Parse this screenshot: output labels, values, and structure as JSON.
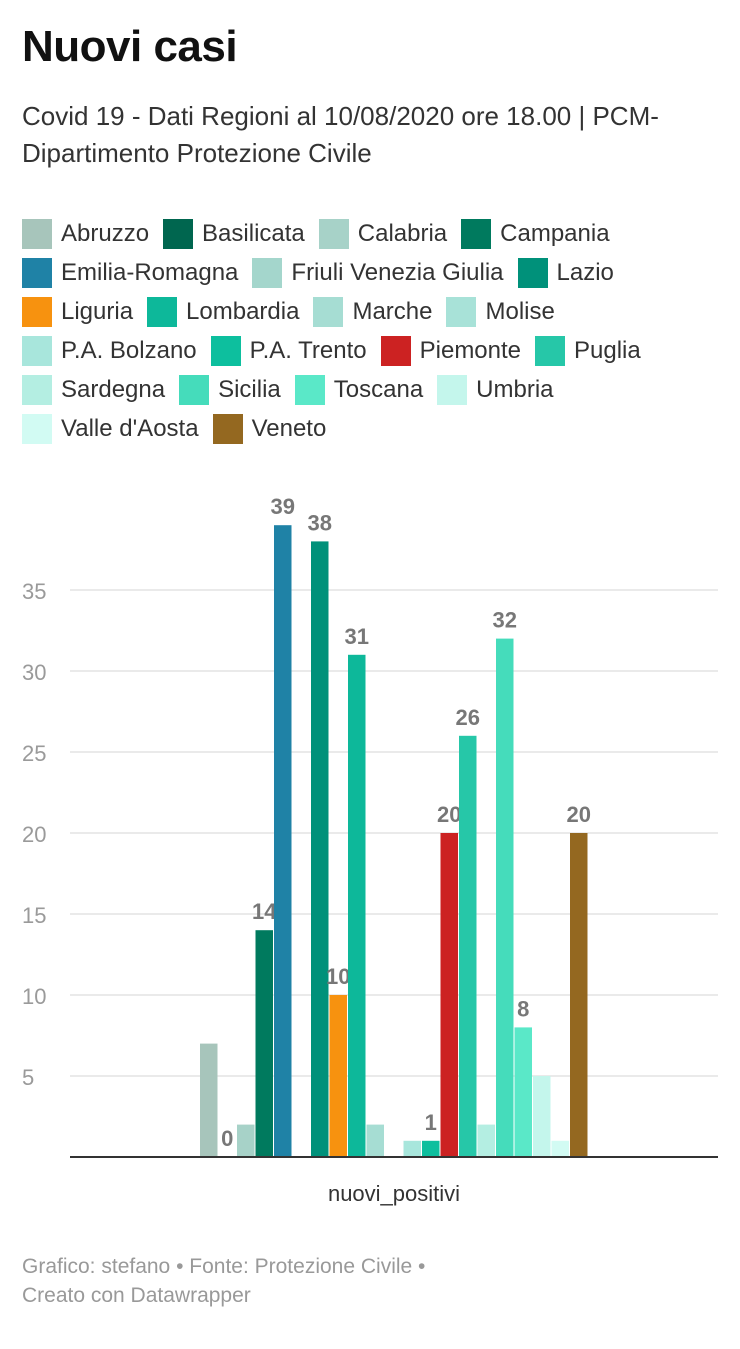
{
  "header": {
    "title": "Nuovi casi",
    "subtitle": "Covid 19 - Dati Regioni al 10/08/2020 ore 18.00 | PCM- Dipartimento Protezione Civile"
  },
  "footer": {
    "line1": "Grafico: stefano • Fonte: Protezione Civile •",
    "line2": "Creato con Datawrapper"
  },
  "chart_data": {
    "type": "bar",
    "categories": [
      "nuovi_positivi"
    ],
    "ylim": [
      0,
      40
    ],
    "yticks": [
      5,
      10,
      15,
      20,
      25,
      30,
      35
    ],
    "grid": true,
    "legend_position": "top",
    "series": [
      {
        "name": "Abruzzo",
        "values": [
          7
        ],
        "color": "#a7c5bb",
        "label": ""
      },
      {
        "name": "Basilicata",
        "values": [
          0
        ],
        "color": "#00664f",
        "label": "0"
      },
      {
        "name": "Calabria",
        "values": [
          2
        ],
        "color": "#a7d2c8",
        "label": ""
      },
      {
        "name": "Campania",
        "values": [
          14
        ],
        "color": "#007a5e",
        "label": "14"
      },
      {
        "name": "Emilia-Romagna",
        "values": [
          39
        ],
        "color": "#1f82a6",
        "label": "39"
      },
      {
        "name": "Friuli Venezia Giulia",
        "values": [
          0
        ],
        "color": "#a4d6cc",
        "label": ""
      },
      {
        "name": "Lazio",
        "values": [
          38
        ],
        "color": "#00917a",
        "label": "38"
      },
      {
        "name": "Liguria",
        "values": [
          10
        ],
        "color": "#f7920f",
        "label": "10"
      },
      {
        "name": "Lombardia",
        "values": [
          31
        ],
        "color": "#0db89a",
        "label": "31"
      },
      {
        "name": "Marche",
        "values": [
          2
        ],
        "color": "#a6ddd3",
        "label": ""
      },
      {
        "name": "Molise",
        "values": [
          0
        ],
        "color": "#a8e2d8",
        "label": ""
      },
      {
        "name": "P.A. Bolzano",
        "values": [
          1
        ],
        "color": "#a8e6dc",
        "label": ""
      },
      {
        "name": "P.A. Trento",
        "values": [
          1
        ],
        "color": "#0dbf9e",
        "label": "1"
      },
      {
        "name": "Piemonte",
        "values": [
          20
        ],
        "color": "#cc2222",
        "label": "20"
      },
      {
        "name": "Puglia",
        "values": [
          26
        ],
        "color": "#26c7a8",
        "label": "26"
      },
      {
        "name": "Sardegna",
        "values": [
          2
        ],
        "color": "#b4eee2",
        "label": ""
      },
      {
        "name": "Sicilia",
        "values": [
          32
        ],
        "color": "#45dcbb",
        "label": "32"
      },
      {
        "name": "Toscana",
        "values": [
          8
        ],
        "color": "#5ae8c8",
        "label": "8"
      },
      {
        "name": "Umbria",
        "values": [
          5
        ],
        "color": "#c4f6ec",
        "label": ""
      },
      {
        "name": "Valle d'Aosta",
        "values": [
          1
        ],
        "color": "#d2fbf3",
        "label": ""
      },
      {
        "name": "Veneto",
        "values": [
          20
        ],
        "color": "#946820",
        "label": "20"
      }
    ]
  }
}
